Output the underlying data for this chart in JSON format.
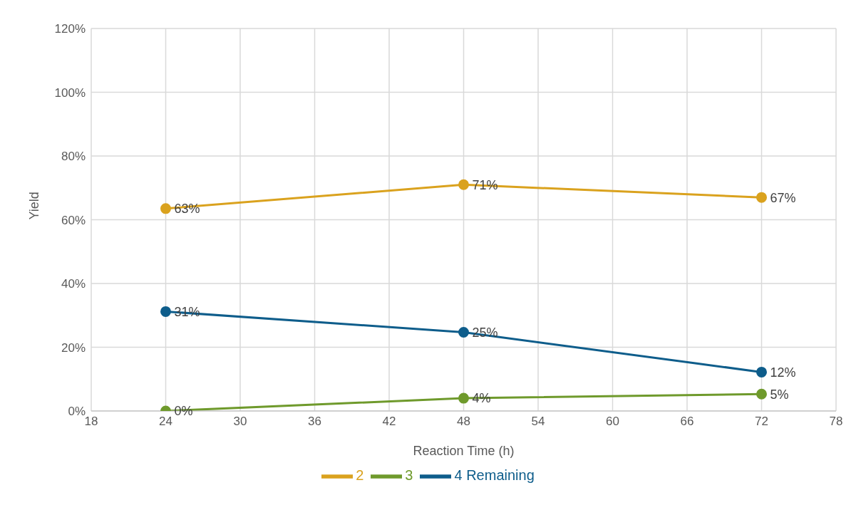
{
  "chart_data": {
    "type": "line",
    "xlabel": "Reaction Time (h)",
    "ylabel": "Yield",
    "x": [
      24,
      48,
      72
    ],
    "series": [
      {
        "name": "2",
        "color": "#daa21e",
        "values": [
          63.5,
          71,
          67
        ],
        "value_labels": [
          "63%",
          "71%",
          "67%"
        ]
      },
      {
        "name": "3",
        "color": "#6f9a2c",
        "values": [
          0,
          4,
          5.3
        ],
        "value_labels": [
          "0%",
          "4%",
          "5%"
        ]
      },
      {
        "name": "4 Remaining",
        "color": "#0e5d8b",
        "values": [
          31.2,
          24.7,
          12.2
        ],
        "value_labels": [
          "31%",
          "25%",
          "12%"
        ]
      }
    ],
    "xlim": [
      18,
      78
    ],
    "xticks": [
      18,
      24,
      30,
      36,
      42,
      48,
      54,
      60,
      66,
      72,
      78
    ],
    "ylim": [
      0,
      120
    ],
    "yticks": [
      {
        "value": 0,
        "label": "0%"
      },
      {
        "value": 20,
        "label": "20%"
      },
      {
        "value": 40,
        "label": "40%"
      },
      {
        "value": 60,
        "label": "60%"
      },
      {
        "value": 80,
        "label": "80%"
      },
      {
        "value": 100,
        "label": "100%"
      },
      {
        "value": 120,
        "label": "120%"
      }
    ],
    "grid": true,
    "legend": "bottom",
    "marker": "circle",
    "line_style": "solid"
  }
}
